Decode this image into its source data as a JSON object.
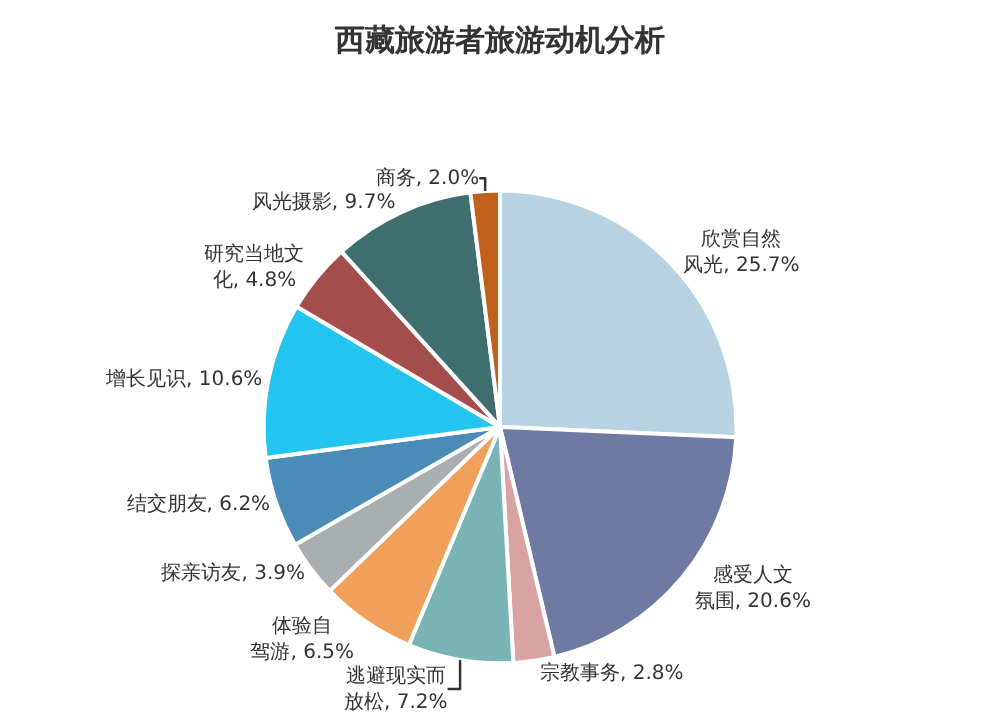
{
  "chart_data": {
    "type": "pie",
    "title": "西藏旅游者旅游动机分析",
    "categories": [
      "欣赏自然风光",
      "感受人文氛围",
      "宗教事务",
      "逃避现实而放松",
      "体验自驾游",
      "探亲访友",
      "结交朋友",
      "增长见识",
      "研究当地文化",
      "风光摄影",
      "商务"
    ],
    "values": [
      25.7,
      20.6,
      2.8,
      7.2,
      6.5,
      3.9,
      6.2,
      10.6,
      4.8,
      9.7,
      2.0
    ],
    "value_labels": [
      "25.7%",
      "20.6%",
      "2.8%",
      "7.2%",
      "6.5%",
      "3.9%",
      "6.2%",
      "10.6%",
      "4.8%",
      "9.7%",
      "2.0%"
    ],
    "colors": [
      "#b7d3e3",
      "#6f7aa3",
      "#d9a3a3",
      "#7ab3b3",
      "#f0a05a",
      "#a9aeb0",
      "#4a8bb8",
      "#22c4f0",
      "#a34d4d",
      "#3f6e6e",
      "#c0601a"
    ],
    "legend": false
  }
}
